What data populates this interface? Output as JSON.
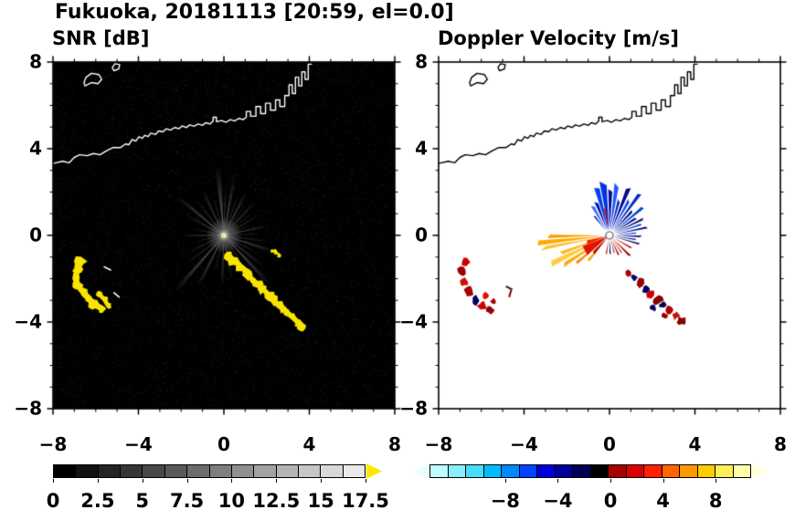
{
  "title": "Fukuoka, 20181113 [20:59, el=0.0]",
  "coastline": {
    "main": [
      [
        -8.0,
        3.32
      ],
      [
        -7.55,
        3.42
      ],
      [
        -7.25,
        3.35
      ],
      [
        -7.0,
        3.6
      ],
      [
        -6.75,
        3.72
      ],
      [
        -6.4,
        3.68
      ],
      [
        -6.1,
        3.78
      ],
      [
        -5.8,
        3.72
      ],
      [
        -5.5,
        3.9
      ],
      [
        -5.2,
        4.05
      ],
      [
        -4.85,
        4.05
      ],
      [
        -4.6,
        4.22
      ],
      [
        -4.45,
        4.18
      ],
      [
        -4.3,
        4.42
      ],
      [
        -4.12,
        4.35
      ],
      [
        -3.98,
        4.55
      ],
      [
        -3.82,
        4.48
      ],
      [
        -3.7,
        4.62
      ],
      [
        -3.55,
        4.56
      ],
      [
        -3.42,
        4.72
      ],
      [
        -3.2,
        4.66
      ],
      [
        -3.05,
        4.82
      ],
      [
        -2.85,
        4.78
      ],
      [
        -2.7,
        4.92
      ],
      [
        -2.5,
        4.86
      ],
      [
        -2.3,
        4.98
      ],
      [
        -2.1,
        4.92
      ],
      [
        -1.95,
        5.05
      ],
      [
        -1.75,
        4.98
      ],
      [
        -1.6,
        5.1
      ],
      [
        -1.4,
        5.04
      ],
      [
        -1.2,
        5.14
      ],
      [
        -1.0,
        5.08
      ],
      [
        -0.85,
        5.2
      ],
      [
        -0.65,
        5.14
      ],
      [
        -0.5,
        5.28
      ],
      [
        -0.5,
        5.45
      ],
      [
        -0.35,
        5.45
      ],
      [
        -0.35,
        5.25
      ],
      [
        -0.1,
        5.3
      ],
      [
        0.1,
        5.22
      ],
      [
        0.3,
        5.34
      ],
      [
        0.5,
        5.28
      ],
      [
        0.7,
        5.4
      ],
      [
        0.9,
        5.34
      ],
      [
        1.05,
        5.45
      ],
      [
        1.05,
        5.72
      ],
      [
        1.25,
        5.72
      ],
      [
        1.25,
        5.5
      ],
      [
        1.5,
        5.5
      ],
      [
        1.5,
        5.95
      ],
      [
        1.72,
        5.95
      ],
      [
        1.72,
        5.62
      ],
      [
        1.95,
        5.62
      ],
      [
        1.95,
        6.1
      ],
      [
        2.18,
        6.1
      ],
      [
        2.18,
        5.78
      ],
      [
        2.42,
        5.78
      ],
      [
        2.42,
        6.25
      ],
      [
        2.62,
        6.25
      ],
      [
        2.62,
        5.95
      ],
      [
        2.85,
        5.95
      ],
      [
        2.85,
        6.45
      ],
      [
        3.05,
        6.45
      ],
      [
        3.05,
        6.95
      ],
      [
        3.2,
        6.95
      ],
      [
        3.2,
        6.55
      ],
      [
        3.35,
        6.55
      ],
      [
        3.35,
        7.3
      ],
      [
        3.5,
        7.3
      ],
      [
        3.5,
        6.9
      ],
      [
        3.65,
        6.9
      ],
      [
        3.65,
        7.55
      ],
      [
        3.8,
        7.55
      ],
      [
        3.8,
        7.2
      ],
      [
        3.95,
        7.2
      ],
      [
        3.95,
        7.9
      ],
      [
        4.1,
        7.9
      ]
    ],
    "islands": [
      [
        [
          -6.5,
          6.9
        ],
        [
          -6.2,
          7.05
        ],
        [
          -5.9,
          7.0
        ],
        [
          -5.72,
          7.2
        ],
        [
          -5.85,
          7.42
        ],
        [
          -6.2,
          7.48
        ],
        [
          -6.45,
          7.3
        ],
        [
          -6.55,
          7.05
        ]
      ],
      [
        [
          -5.15,
          7.6
        ],
        [
          -4.92,
          7.68
        ],
        [
          -4.88,
          7.88
        ],
        [
          -5.1,
          7.92
        ],
        [
          -5.22,
          7.75
        ]
      ]
    ]
  },
  "chart_data": [
    {
      "type": "heatmap",
      "id": "snr",
      "title": "SNR [dB]",
      "xlim": [
        -8,
        8
      ],
      "ylim": [
        -8,
        8
      ],
      "x_tick_values": [
        -8,
        -4,
        0,
        4,
        8
      ],
      "x_tick_labels": [
        "−8",
        "−4",
        "0",
        "4",
        "8"
      ],
      "y_tick_values": [
        8,
        4,
        0,
        -4,
        -8
      ],
      "y_tick_labels": [
        "8",
        "4",
        "0",
        "−4",
        "−8"
      ],
      "minor_tick_step": 1,
      "grid": false,
      "background": "#000000",
      "coast_color": "#ffffff",
      "description": "Radar SNR field on black background: grayscale radial beams emanate from the radar at the origin out to r≈4; bright yellow (saturated) ground/sea echoes form an arc near (-6.8,-2.2) and a chain from (0.3,-1) to (3.6,-4.2).",
      "radar_center": [
        0,
        0
      ],
      "beams": [
        [
          95,
          5,
          3.3,
          0.5
        ],
        [
          88,
          3,
          2.3,
          0.4
        ],
        [
          80,
          4,
          2.8,
          0.45
        ],
        [
          71,
          3,
          2.0,
          0.35
        ],
        [
          63,
          4,
          2.3,
          0.45
        ],
        [
          55,
          3,
          1.8,
          0.3
        ],
        [
          47,
          4,
          2.1,
          0.4
        ],
        [
          38,
          3,
          1.7,
          0.3
        ],
        [
          30,
          3,
          2.0,
          0.35
        ],
        [
          22,
          3,
          1.5,
          0.3
        ],
        [
          12,
          4,
          2.2,
          0.4
        ],
        [
          3,
          3,
          1.7,
          0.3
        ],
        [
          -8,
          3,
          2.0,
          0.35
        ],
        [
          -18,
          4,
          2.6,
          0.45
        ],
        [
          -28,
          3,
          1.9,
          0.3
        ],
        [
          -38,
          4,
          2.4,
          0.4
        ],
        [
          -47,
          4,
          3.2,
          0.5
        ],
        [
          -58,
          3,
          2.0,
          0.35
        ],
        [
          -68,
          3,
          1.6,
          0.3
        ],
        [
          -80,
          4,
          2.1,
          0.35
        ],
        [
          -92,
          4,
          2.4,
          0.4
        ],
        [
          -104,
          3,
          1.8,
          0.3
        ],
        [
          -117,
          4,
          2.7,
          0.45
        ],
        [
          -131,
          4,
          3.5,
          0.5
        ],
        [
          -143,
          3,
          2.2,
          0.35
        ],
        [
          -155,
          4,
          1.8,
          0.3
        ],
        [
          -168,
          3,
          1.5,
          0.28
        ],
        [
          180,
          4,
          2.1,
          0.35
        ],
        [
          168,
          3,
          1.6,
          0.3
        ],
        [
          152,
          4,
          2.0,
          0.33
        ],
        [
          140,
          4,
          2.9,
          0.45
        ],
        [
          128,
          3,
          2.1,
          0.35
        ],
        [
          115,
          4,
          2.4,
          0.4
        ],
        [
          105,
          3,
          1.9,
          0.33
        ]
      ],
      "echo_color": "#f8e400",
      "echo_chains": [
        {
          "r": 0.2,
          "points": [
            [
              -6.7,
              -1.2
            ],
            [
              -6.85,
              -1.55
            ],
            [
              -6.95,
              -1.95
            ],
            [
              -6.85,
              -2.3
            ],
            [
              -6.6,
              -2.6
            ],
            [
              -6.3,
              -2.95
            ],
            [
              -6.05,
              -3.2
            ],
            [
              -5.75,
              -3.35
            ]
          ]
        },
        {
          "r": 0.14,
          "points": [
            [
              -5.85,
              -2.7
            ],
            [
              -5.6,
              -2.95
            ],
            [
              -5.45,
              -3.2
            ]
          ]
        },
        {
          "r": 0.17,
          "points": [
            [
              0.25,
              -0.95
            ],
            [
              0.5,
              -1.15
            ],
            [
              0.75,
              -1.4
            ],
            [
              1.0,
              -1.6
            ],
            [
              1.2,
              -1.85
            ],
            [
              1.35,
              -2.1
            ],
            [
              1.6,
              -2.3
            ],
            [
              1.85,
              -2.5
            ],
            [
              2.1,
              -2.75
            ],
            [
              2.3,
              -3.0
            ],
            [
              2.55,
              -3.2
            ],
            [
              2.75,
              -3.4
            ],
            [
              3.0,
              -3.6
            ],
            [
              3.25,
              -3.8
            ],
            [
              3.45,
              -4.0
            ],
            [
              3.6,
              -4.15
            ]
          ]
        },
        {
          "r": 0.08,
          "points": [
            [
              2.25,
              -0.7
            ],
            [
              2.45,
              -0.8
            ],
            [
              2.62,
              -0.9
            ]
          ]
        }
      ],
      "white_marks": [
        [
          -5.6,
          -1.45,
          -5.3,
          -1.6
        ],
        [
          -5.15,
          -2.65,
          -4.9,
          -2.85
        ]
      ],
      "colorbar": {
        "min": 0,
        "max": 17.5,
        "tick_values": [
          0,
          2.5,
          5,
          7.5,
          10,
          12.5,
          15,
          17.5
        ],
        "tick_labels": [
          "0",
          "2.5",
          "5",
          "7.5",
          "10",
          "12.5",
          "15",
          "17.5"
        ],
        "cells": [
          "#000000",
          "#121212",
          "#242424",
          "#363636",
          "#484848",
          "#5a5a5a",
          "#6c6c6c",
          "#7e7e7e",
          "#909090",
          "#a2a2a2",
          "#b4b4b4",
          "#c6c6c6",
          "#d8d8d8",
          "#eaeaea"
        ],
        "over_arrow_color": "#ffe800"
      }
    },
    {
      "type": "heatmap",
      "id": "doppler",
      "title": "Doppler Velocity [m/s]",
      "xlim": [
        -8,
        8
      ],
      "ylim": [
        -8,
        8
      ],
      "x_tick_values": [
        -8,
        -4,
        0,
        4,
        8
      ],
      "x_tick_labels": [
        "−8",
        "−4",
        "0",
        "4",
        "8"
      ],
      "y_tick_values": [
        8,
        4,
        0,
        -4,
        -8
      ],
      "y_tick_labels": [
        "8",
        "4",
        "0",
        "−4",
        "−8"
      ],
      "minor_tick_step": 1,
      "grid": false,
      "background": "#ffffff",
      "coast_color": "#000000",
      "description": "Doppler velocity field: blue/navy (approaching) wedges toward the N-NE of the radar, red wedges just SW and below, orange-yellow (receding) fan toward the W-SW out to r≈3.7; scattered dark-red/navy echoes along the SE chain and the SW arc.",
      "radar_center": [
        0,
        0
      ],
      "wedges": [
        [
          97,
          7,
          0.25,
          2.7,
          "#0433dd"
        ],
        [
          89,
          5,
          0.25,
          2.15,
          "#000f99"
        ],
        [
          82,
          5,
          0.25,
          2.5,
          "#2255ff"
        ],
        [
          75,
          4,
          0.25,
          1.85,
          "#0022cc"
        ],
        [
          68,
          5,
          0.25,
          2.3,
          "#000a88"
        ],
        [
          61,
          4,
          0.25,
          1.9,
          "#1144ee"
        ],
        [
          54,
          4,
          0.25,
          2.2,
          "#0033bb"
        ],
        [
          47,
          4,
          0.25,
          1.7,
          "#000077"
        ],
        [
          40,
          4,
          0.25,
          2.0,
          "#0044dd"
        ],
        [
          33,
          4,
          0.25,
          1.6,
          "#001199"
        ],
        [
          26,
          3,
          0.25,
          1.8,
          "#000066"
        ],
        [
          19,
          3,
          0.25,
          1.45,
          "#0033cc"
        ],
        [
          12,
          3,
          0.25,
          1.6,
          "#000088"
        ],
        [
          5,
          3,
          0.25,
          1.3,
          "#2244dd"
        ],
        [
          -2,
          3,
          0.25,
          1.5,
          "#000066"
        ],
        [
          -9,
          3,
          0.25,
          1.25,
          "#0022aa"
        ],
        [
          -16,
          3,
          0.2,
          1.4,
          "#000055"
        ],
        [
          105,
          6,
          0.25,
          2.2,
          "#0044ee"
        ],
        [
          112,
          5,
          0.25,
          1.7,
          "#0011aa"
        ],
        [
          120,
          5,
          0.25,
          1.45,
          "#3366ff"
        ],
        [
          128,
          4,
          0.3,
          1.1,
          "#0022bb"
        ],
        [
          186,
          4,
          0.3,
          3.7,
          "#ffaa00"
        ],
        [
          191,
          3,
          0.3,
          3.1,
          "#ffc233"
        ],
        [
          181,
          3,
          0.3,
          2.6,
          "#ff9900"
        ],
        [
          206,
          5,
          0.3,
          3.3,
          "#ffcc44"
        ],
        [
          213,
          4,
          0.3,
          2.5,
          "#ffaa11"
        ],
        [
          220,
          4,
          0.3,
          1.9,
          "#ff8800"
        ],
        [
          200,
          4,
          0.3,
          2.15,
          "#ffb722"
        ],
        [
          230,
          5,
          0.3,
          1.5,
          "#ffaa00"
        ],
        [
          100,
          4,
          0.2,
          1.25,
          "#cc0000"
        ],
        [
          212,
          20,
          0.12,
          1.5,
          "#dd1505"
        ],
        [
          197,
          9,
          0.12,
          1.2,
          "#ee2200"
        ],
        [
          228,
          7,
          0.15,
          1.1,
          "#bb0000"
        ],
        [
          -30,
          4,
          0.2,
          1.1,
          "#cc1100"
        ],
        [
          -45,
          4,
          0.2,
          1.35,
          "#990000"
        ],
        [
          -55,
          3,
          0.2,
          0.95,
          "#dd2200"
        ],
        [
          -65,
          4,
          0.2,
          1.15,
          "#880000"
        ],
        [
          -75,
          3,
          0.2,
          0.9,
          "#aa0000"
        ],
        [
          -88,
          4,
          0.2,
          1.0,
          "#000066"
        ],
        [
          -100,
          4,
          0.2,
          0.85,
          "#bb0000"
        ]
      ],
      "blobs": [
        [
          1.45,
          -2.2,
          0.22,
          "#990000"
        ],
        [
          1.7,
          -2.45,
          0.18,
          "#000066"
        ],
        [
          1.95,
          -2.7,
          0.2,
          "#cc0000"
        ],
        [
          2.25,
          -3.0,
          0.22,
          "#880000"
        ],
        [
          2.5,
          -3.2,
          0.16,
          "#000055"
        ],
        [
          2.8,
          -3.45,
          0.2,
          "#aa0000"
        ],
        [
          3.1,
          -3.7,
          0.18,
          "#cc1100"
        ],
        [
          3.35,
          -3.95,
          0.2,
          "#880000"
        ],
        [
          2.05,
          -3.35,
          0.14,
          "#000066"
        ],
        [
          2.6,
          -3.7,
          0.13,
          "#990000"
        ],
        [
          0.9,
          -1.75,
          0.16,
          "#aa0000"
        ],
        [
          1.15,
          -1.95,
          0.13,
          "#000077"
        ],
        [
          -6.75,
          -1.25,
          0.2,
          "#cc0000"
        ],
        [
          -6.9,
          -1.7,
          0.22,
          "#990000"
        ],
        [
          -6.8,
          -2.15,
          0.2,
          "#cc1100"
        ],
        [
          -6.55,
          -2.6,
          0.22,
          "#aa0000"
        ],
        [
          -6.25,
          -3.0,
          0.2,
          "#000066"
        ],
        [
          -5.95,
          -3.25,
          0.2,
          "#cc0000"
        ],
        [
          -5.6,
          -3.45,
          0.18,
          "#990000"
        ],
        [
          -5.8,
          -2.8,
          0.15,
          "#dd1100"
        ],
        [
          -5.45,
          -3.05,
          0.13,
          "#aa0000"
        ]
      ],
      "marks": [
        [
          -4.85,
          -2.35,
          -4.55,
          -2.5,
          "#222222"
        ],
        [
          -4.6,
          -2.52,
          -4.7,
          -2.85,
          "#880000"
        ]
      ],
      "center_marker": {
        "fill": "#ffffff",
        "stroke": "#556"
      },
      "colorbar": {
        "min": -14,
        "max": 11,
        "tick_values": [
          -8,
          -4,
          0,
          4,
          8
        ],
        "tick_labels": [
          "−8",
          "−4",
          "0",
          "4",
          "8"
        ],
        "cells": [
          "#bbffff",
          "#88eeff",
          "#44ddff",
          "#00bbff",
          "#0088ff",
          "#0044ff",
          "#0000dd",
          "#000099",
          "#000055",
          "#000000",
          "#aa0000",
          "#dd0000",
          "#ff2200",
          "#ff6600",
          "#ff9900",
          "#ffcc00",
          "#ffee55",
          "#ffffaa"
        ],
        "under_arrow_color": "#e8ffff",
        "over_arrow_color": "#ffffdd"
      }
    }
  ]
}
